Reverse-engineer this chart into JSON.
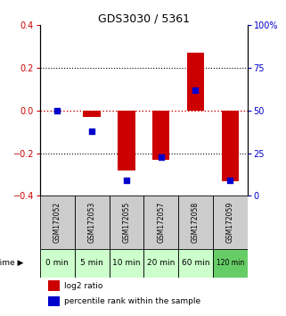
{
  "title": "GDS3030 / 5361",
  "samples": [
    "GSM172052",
    "GSM172053",
    "GSM172055",
    "GSM172057",
    "GSM172058",
    "GSM172059"
  ],
  "time_labels": [
    "0 min",
    "5 min",
    "10 min",
    "20 min",
    "60 min",
    "120 min"
  ],
  "log2_ratio": [
    0.0,
    -0.03,
    -0.28,
    -0.23,
    0.27,
    -0.33
  ],
  "percentile": [
    50,
    38,
    9,
    23,
    62,
    9
  ],
  "ylim_left": [
    -0.4,
    0.4
  ],
  "ylim_right": [
    0,
    100
  ],
  "yticks_left": [
    -0.4,
    -0.2,
    0.0,
    0.2,
    0.4
  ],
  "yticks_right": [
    0,
    25,
    50,
    75,
    100
  ],
  "ytick_labels_right": [
    "0",
    "25",
    "50",
    "75",
    "100%"
  ],
  "red_color": "#cc0000",
  "blue_color": "#0000cc",
  "bar_width": 0.5,
  "dot_size": 25,
  "grid_color": "#000000",
  "zero_line_color": "#cc0000",
  "sample_bg_color": "#cccccc",
  "time_bg_color_light": "#ccffcc",
  "time_bg_color_dark": "#66cc66",
  "title_color": "#000000",
  "left_tick_color": "#cc0000",
  "right_tick_color": "#0000cc"
}
